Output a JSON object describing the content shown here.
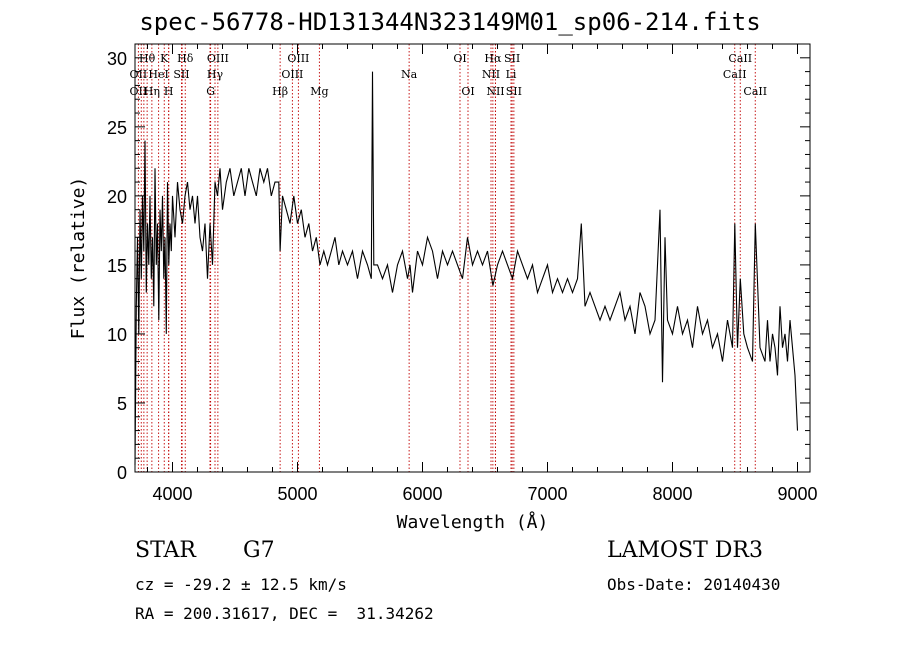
{
  "chart_data": {
    "type": "line",
    "title": "spec-56778-HD131344N323149M01_sp06-214.fits",
    "xlabel": "Wavelength (Å)",
    "ylabel": "Flux (relative)",
    "xlim": [
      3700,
      9100
    ],
    "ylim": [
      0,
      31
    ],
    "xticks": [
      4000,
      5000,
      6000,
      7000,
      8000,
      9000
    ],
    "yticks": [
      0,
      5,
      10,
      15,
      20,
      25,
      30
    ],
    "series": [
      {
        "name": "spectrum",
        "x": [
          3700,
          3710,
          3720,
          3730,
          3740,
          3750,
          3760,
          3770,
          3780,
          3790,
          3800,
          3810,
          3820,
          3830,
          3840,
          3850,
          3860,
          3870,
          3880,
          3890,
          3900,
          3910,
          3920,
          3930,
          3940,
          3950,
          3960,
          3970,
          3980,
          3990,
          4000,
          4020,
          4040,
          4060,
          4080,
          4100,
          4120,
          4140,
          4160,
          4180,
          4200,
          4220,
          4240,
          4260,
          4280,
          4300,
          4320,
          4340,
          4360,
          4380,
          4400,
          4430,
          4460,
          4490,
          4520,
          4550,
          4580,
          4610,
          4640,
          4670,
          4700,
          4730,
          4760,
          4790,
          4820,
          4850,
          4861,
          4880,
          4910,
          4940,
          4970,
          5000,
          5030,
          5060,
          5090,
          5120,
          5150,
          5180,
          5210,
          5240,
          5270,
          5300,
          5330,
          5360,
          5400,
          5440,
          5480,
          5520,
          5560,
          5590,
          5600,
          5610,
          5640,
          5680,
          5720,
          5760,
          5800,
          5840,
          5880,
          5900,
          5920,
          5960,
          6000,
          6040,
          6080,
          6120,
          6160,
          6200,
          6240,
          6280,
          6320,
          6360,
          6400,
          6440,
          6480,
          6520,
          6563,
          6600,
          6640,
          6680,
          6720,
          6760,
          6800,
          6840,
          6880,
          6920,
          6960,
          7000,
          7040,
          7080,
          7120,
          7160,
          7200,
          7240,
          7270,
          7300,
          7340,
          7380,
          7420,
          7460,
          7500,
          7540,
          7580,
          7620,
          7660,
          7700,
          7740,
          7780,
          7820,
          7860,
          7900,
          7920,
          7940,
          7960,
          8000,
          8040,
          8080,
          8120,
          8160,
          8200,
          8240,
          8280,
          8320,
          8360,
          8400,
          8440,
          8480,
          8498,
          8520,
          8542,
          8570,
          8600,
          8640,
          8662,
          8700,
          8740,
          8760,
          8780,
          8800,
          8820,
          8840,
          8860,
          8880,
          8900,
          8920,
          8940,
          8960,
          8980,
          9000
        ],
        "y": [
          0.5,
          12,
          17,
          10,
          19,
          14,
          20,
          16,
          24,
          13,
          18,
          15,
          20,
          14,
          17,
          12,
          22,
          15,
          18,
          11,
          19,
          16,
          20,
          14,
          17,
          10,
          21,
          15,
          18,
          16,
          20,
          17,
          21,
          19,
          18,
          20,
          21,
          19,
          20,
          18,
          20,
          17,
          16,
          18,
          14,
          18,
          15,
          21,
          20,
          22,
          19,
          21,
          22,
          20,
          21,
          22,
          20,
          22,
          21,
          20,
          22,
          21,
          22,
          20,
          21,
          21,
          16,
          20,
          19,
          18,
          20,
          18,
          19,
          17,
          18,
          16,
          17,
          15,
          16,
          15,
          16,
          17,
          15,
          16,
          15,
          16,
          14,
          16,
          15,
          14,
          29,
          15,
          15,
          14,
          15,
          13,
          15,
          16,
          14,
          15,
          13,
          16,
          15,
          17,
          16,
          14,
          16,
          15,
          16,
          15,
          14,
          17,
          15,
          16,
          15,
          16,
          13.5,
          15,
          16,
          15,
          14,
          16,
          15,
          14,
          15,
          13,
          14,
          15,
          13,
          14,
          13,
          14,
          13,
          14,
          18,
          12,
          13,
          12,
          11,
          12,
          11,
          12,
          13,
          11,
          12,
          10,
          13,
          12,
          10,
          11,
          19,
          6.5,
          17,
          11,
          10,
          12,
          10,
          11,
          9,
          12,
          10,
          11,
          9,
          10,
          8,
          11,
          9,
          18,
          9,
          14,
          10,
          9,
          8,
          18,
          9,
          8,
          11,
          8,
          10,
          9,
          7,
          12,
          9,
          10,
          8,
          11,
          9,
          7,
          3
        ]
      }
    ],
    "lines_top": [
      {
        "label": "Hθ",
        "x": 3797
      },
      {
        "label": "K",
        "x": 3934
      },
      {
        "label": "Hδ",
        "x": 4102
      },
      {
        "label": "OIII",
        "x": 4363
      },
      {
        "label": "OIII",
        "x": 5007
      },
      {
        "label": "OI",
        "x": 6300
      },
      {
        "label": "Hα",
        "x": 6563
      },
      {
        "label": "SII",
        "x": 6717
      },
      {
        "label": "CaII",
        "x": 8542
      }
    ],
    "lines_mid": [
      {
        "label": "OII",
        "x": 3727
      },
      {
        "label": "HeI",
        "x": 3889
      },
      {
        "label": "SII",
        "x": 4072
      },
      {
        "label": "Hγ",
        "x": 4340
      },
      {
        "label": "OIII",
        "x": 4959
      },
      {
        "label": "Na",
        "x": 5893
      },
      {
        "label": "NII",
        "x": 6548
      },
      {
        "label": "Li",
        "x": 6708
      },
      {
        "label": "CaII",
        "x": 8498
      }
    ],
    "lines_low": [
      {
        "label": "OII",
        "x": 3727
      },
      {
        "label": "Hη",
        "x": 3835
      },
      {
        "label": "H",
        "x": 3969
      },
      {
        "label": "G",
        "x": 4305
      },
      {
        "label": "Hβ",
        "x": 4861
      },
      {
        "label": "Mg",
        "x": 5175
      },
      {
        "label": "OI",
        "x": 6364
      },
      {
        "label": "NII",
        "x": 6584
      },
      {
        "label": "SII",
        "x": 6731
      },
      {
        "label": "CaII",
        "x": 8662
      }
    ],
    "extra_marker_lines": [
      3750,
      3771,
      3889,
      3970,
      4077,
      4300,
      5007,
      6583,
      8498
    ]
  },
  "info": {
    "object": "STAR",
    "subclass": "G7",
    "cz": "cz = -29.2 ± 12.5 km/s",
    "radec": "RA = 200.31617, DEC =  31.34262",
    "survey": "LAMOST DR3",
    "obsdate": "Obs-Date: 20140430"
  }
}
